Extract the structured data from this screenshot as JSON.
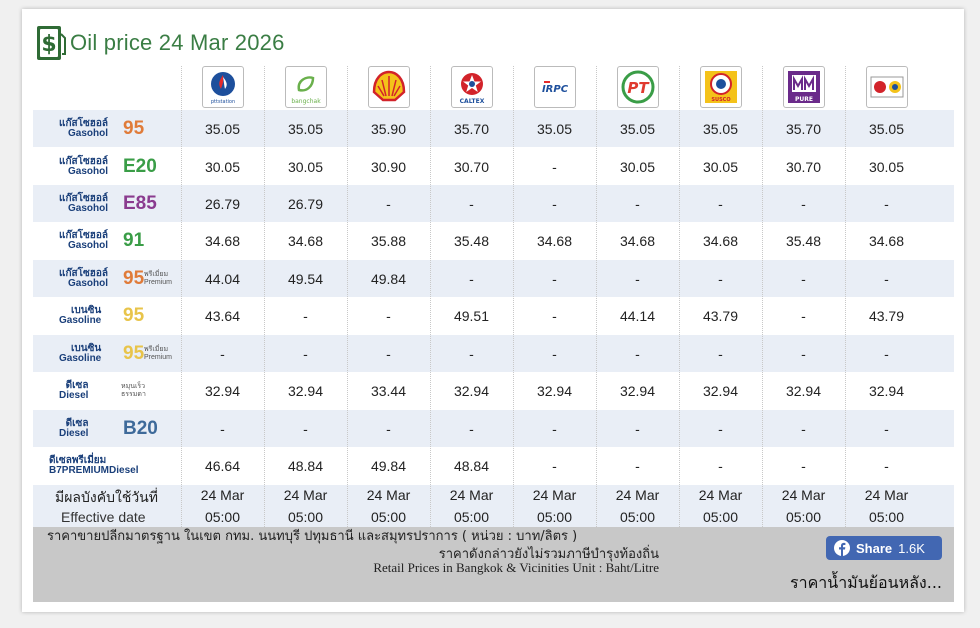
{
  "title": "Oil price 24 Mar 2026",
  "brands": [
    {
      "name": "PTT Station",
      "label": "pttstation",
      "color": "#1d4f9c",
      "icon": "ptt-logo-icon"
    },
    {
      "name": "Bangchak",
      "label": "bangchak",
      "color": "#6ab04c",
      "icon": "bangchak-logo-icon"
    },
    {
      "name": "Shell",
      "label": "",
      "color": "#f4c21a",
      "icon": "shell-logo-icon"
    },
    {
      "name": "Caltex",
      "label": "CALTEX",
      "color": "#d2232a",
      "icon": "caltex-logo-icon"
    },
    {
      "name": "IRPC",
      "label": "IRPC",
      "color": "#1d4f9c",
      "icon": "irpc-logo-icon"
    },
    {
      "name": "PT",
      "label": "PT",
      "color": "#e03a2f",
      "icon": "pt-logo-icon"
    },
    {
      "name": "Susco",
      "label": "SUSCO",
      "color": "#d2232a",
      "icon": "susco-logo-icon"
    },
    {
      "name": "Pure",
      "label": "PURE",
      "color": "#6a2a8a",
      "icon": "pure-logo-icon"
    },
    {
      "name": "Siam Gas",
      "label": "",
      "color": "#d2232a",
      "icon": "siamgas-logo-icon"
    }
  ],
  "fuels": [
    {
      "th": "แก๊สโซฮอล์",
      "en": "Gasohol",
      "code": "95",
      "code_color": "#e07b39",
      "sub": "",
      "prices": [
        "35.05",
        "35.05",
        "35.90",
        "35.70",
        "35.05",
        "35.05",
        "35.05",
        "35.70",
        "35.05"
      ]
    },
    {
      "th": "แก๊สโซฮอล์",
      "en": "Gasohol",
      "code": "E20",
      "code_color": "#3a9d47",
      "sub": "",
      "prices": [
        "30.05",
        "30.05",
        "30.90",
        "30.70",
        "-",
        "30.05",
        "30.05",
        "30.70",
        "30.05"
      ]
    },
    {
      "th": "แก๊สโซฮอล์",
      "en": "Gasohol",
      "code": "E85",
      "code_color": "#8a3b8f",
      "sub": "",
      "prices": [
        "26.79",
        "26.79",
        "-",
        "-",
        "-",
        "-",
        "-",
        "-",
        "-"
      ]
    },
    {
      "th": "แก๊สโซฮอล์",
      "en": "Gasohol",
      "code": "91",
      "code_color": "#3a9d47",
      "sub": "",
      "prices": [
        "34.68",
        "34.68",
        "35.88",
        "35.48",
        "34.68",
        "34.68",
        "34.68",
        "35.48",
        "34.68"
      ]
    },
    {
      "th": "แก๊สโซฮอล์",
      "en": "Gasohol",
      "code": "95",
      "code_color": "#e07b39",
      "sub": "พรีเมี่ยม Premium",
      "prices": [
        "44.04",
        "49.54",
        "49.84",
        "-",
        "-",
        "-",
        "-",
        "-",
        "-"
      ]
    },
    {
      "th": "เบนซิน",
      "en": "Gasoline",
      "code": "95",
      "code_color": "#e8c44a",
      "sub": "",
      "prices": [
        "43.64",
        "-",
        "-",
        "49.51",
        "-",
        "44.14",
        "43.79",
        "-",
        "43.79"
      ]
    },
    {
      "th": "เบนซิน",
      "en": "Gasoline",
      "code": "95",
      "code_color": "#e8c44a",
      "sub": "พรีเมี่ยม Premium",
      "prices": [
        "-",
        "-",
        "-",
        "-",
        "-",
        "-",
        "-",
        "-",
        "-"
      ]
    },
    {
      "th": "ดีเซล",
      "en": "Diesel",
      "code": "",
      "code_color": "#555555",
      "sub": "หมุนเร็ว ธรรมดา",
      "prices": [
        "32.94",
        "32.94",
        "33.44",
        "32.94",
        "32.94",
        "32.94",
        "32.94",
        "32.94",
        "32.94"
      ]
    },
    {
      "th": "ดีเซล",
      "en": "Diesel",
      "code": "B20",
      "code_color": "#3e6a9a",
      "sub": "",
      "prices": [
        "-",
        "-",
        "-",
        "-",
        "-",
        "-",
        "-",
        "-",
        "-"
      ]
    },
    {
      "th": "ดีเซลพรีเมี่ยม",
      "en": "B7PREMIUMDiesel",
      "code": "",
      "code_color": "#1a3f7a",
      "sub": "",
      "prices": [
        "46.64",
        "48.84",
        "49.84",
        "48.84",
        "-",
        "-",
        "-",
        "-",
        "-"
      ]
    }
  ],
  "effective": {
    "label_th": "มีผลบังคับใช้วันที่",
    "label_en": "Effective date",
    "dates": [
      {
        "date": "24 Mar",
        "time": "05:00"
      },
      {
        "date": "24 Mar",
        "time": "05:00"
      },
      {
        "date": "24 Mar",
        "time": "05:00"
      },
      {
        "date": "24 Mar",
        "time": "05:00"
      },
      {
        "date": "24 Mar",
        "time": "05:00"
      },
      {
        "date": "24 Mar",
        "time": "05:00"
      },
      {
        "date": "24 Mar",
        "time": "05:00"
      },
      {
        "date": "24 Mar",
        "time": "05:00"
      },
      {
        "date": "24 Mar",
        "time": "05:00"
      }
    ]
  },
  "footer": {
    "line1": "ราคาขายปลีกมาตรฐาน ในเขต กทม. นนทบุรี ปทุมธานี และสมุทรปราการ ( หน่วย : บาท/ลิตร )",
    "line2": "ราคาดังกล่าวยังไม่รวมภาษีบำรุงท้องถิ่น",
    "line3": "Retail Prices in Bangkok & Vicinities Unit : Baht/Litre",
    "share_label": "Share",
    "share_count": "1.6K",
    "history_link": "ราคาน้ำมันย้อนหลัง..."
  }
}
